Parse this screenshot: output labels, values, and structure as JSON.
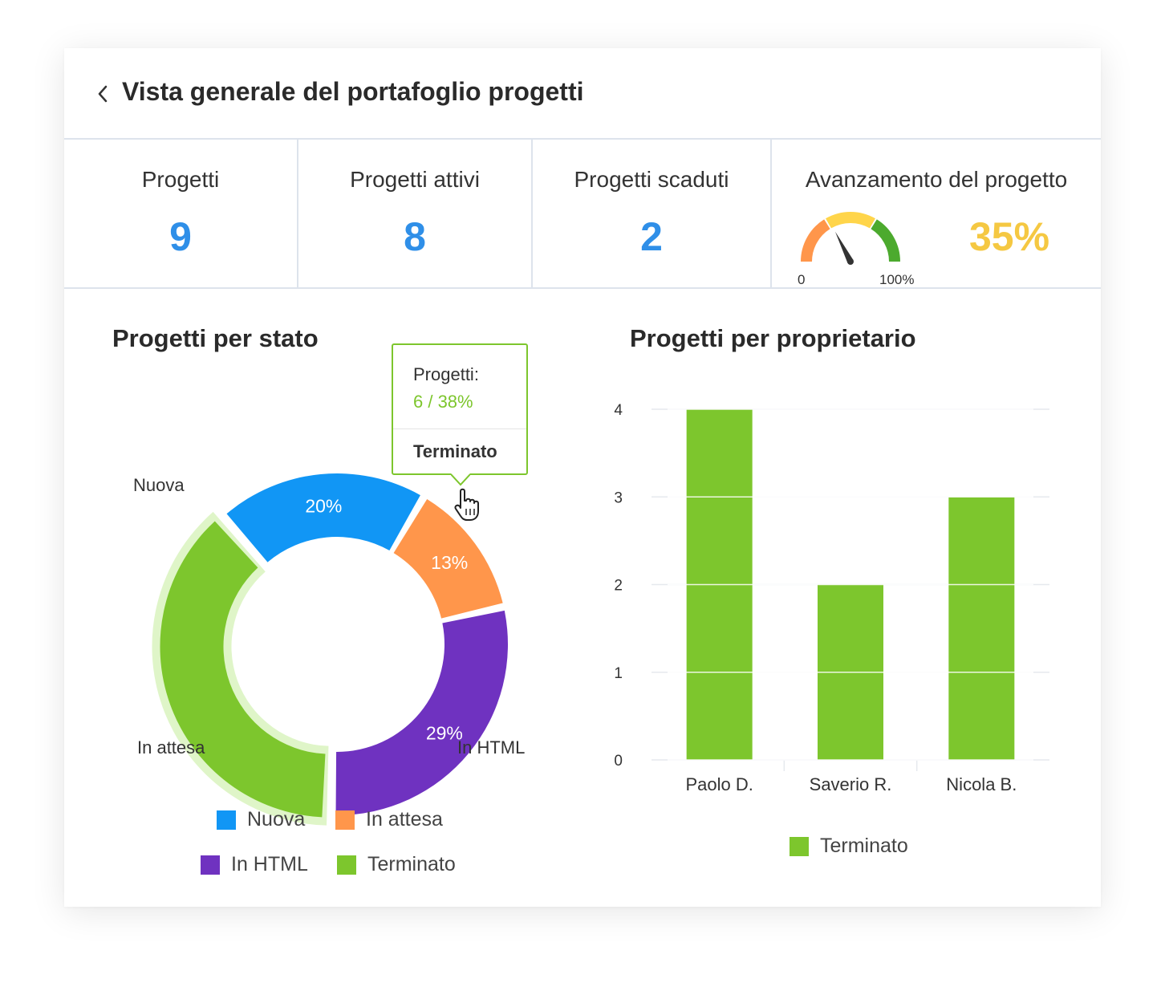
{
  "header": {
    "title": "Vista generale del portafoglio progetti",
    "back_icon": "chevron-left-icon"
  },
  "kpis": {
    "projects": {
      "label": "Progetti",
      "value": "9"
    },
    "active": {
      "label": "Progetti attivi",
      "value": "8"
    },
    "overdue": {
      "label": "Progetti scaduti",
      "value": "2"
    },
    "progress": {
      "label": "Avanzamento del progetto",
      "value": "35%",
      "fraction": 0.35,
      "min_label": "0",
      "max_label": "100%"
    }
  },
  "colors": {
    "accent_blue": "#2f8fe8",
    "progress_yellow": "#f5c842",
    "nuova": "#1196f5",
    "in_attesa": "#ff964b",
    "in_html": "#6f32c0",
    "terminato": "#7dc62d"
  },
  "status_section": {
    "title": "Progetti per stato"
  },
  "owner_section": {
    "title": "Progetti per proprietario"
  },
  "tooltip": {
    "label": "Progetti:",
    "value": "6 / 38%",
    "title": "Terminato"
  },
  "chart_data": [
    {
      "type": "pie",
      "title": "Progetti per stato",
      "categories": [
        "Nuova",
        "In attesa",
        "In HTML",
        "Terminato"
      ],
      "values": [
        20,
        13,
        29,
        38
      ],
      "labels": [
        "20%",
        "13%",
        "29%",
        ""
      ],
      "legend": [
        "Nuova",
        "In attesa",
        "In HTML",
        "Terminato"
      ],
      "highlighted": "Terminato"
    },
    {
      "type": "bar",
      "title": "Progetti per proprietario",
      "categories": [
        "Paolo D.",
        "Saverio R.",
        "Nicola B."
      ],
      "series": [
        {
          "name": "Terminato",
          "values": [
            4,
            2,
            3
          ]
        }
      ],
      "ylim": [
        0,
        4
      ],
      "yticks": [
        "0",
        "1",
        "2",
        "3",
        "4"
      ],
      "legend": [
        "Terminato"
      ]
    }
  ]
}
